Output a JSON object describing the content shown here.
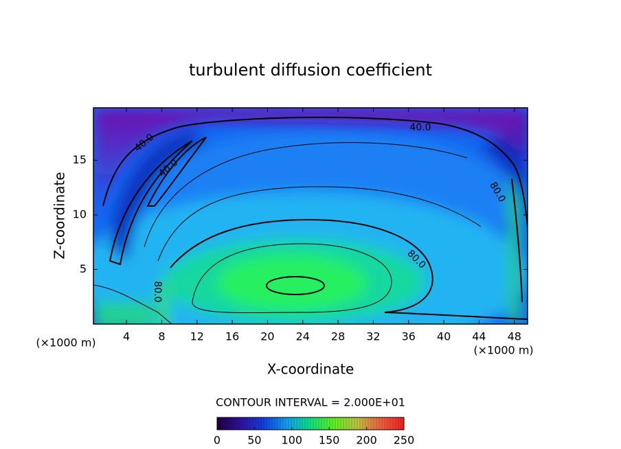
{
  "chart_data": {
    "type": "contour",
    "title": "turbulent diffusion coefficient",
    "x_label": "X-coordinate",
    "y_label": "Z-coordinate",
    "x_unit_label": "(×1000 m)",
    "y_unit_label": "(×1000 m)",
    "xlim": [
      0.25,
      49.5
    ],
    "xticks": [
      4,
      8,
      12,
      16,
      20,
      24,
      28,
      32,
      36,
      40,
      44,
      48
    ],
    "ylim": [
      0,
      19.8
    ],
    "yticks": [
      5,
      10,
      15
    ],
    "contour_interval_label": "CONTOUR INTERVAL = 2.000E+01",
    "contour_labels": [
      {
        "value": 40,
        "label": "40.0"
      },
      {
        "value": 40,
        "label": "40.0"
      },
      {
        "value": 40,
        "label": "40.0"
      },
      {
        "value": 80,
        "label": "80.0"
      },
      {
        "value": 80,
        "label": "80.0"
      },
      {
        "value": 80,
        "label": "80.0"
      }
    ],
    "colorbar": {
      "clim": [
        0,
        250
      ],
      "ticks": [
        0,
        50,
        100,
        150,
        200,
        250
      ],
      "colormap": [
        "#200040",
        "#3010a0",
        "#1040e0",
        "#10a0f0",
        "#10e080",
        "#60f020",
        "#c0c040",
        "#f06040",
        "#f02020"
      ]
    }
  }
}
